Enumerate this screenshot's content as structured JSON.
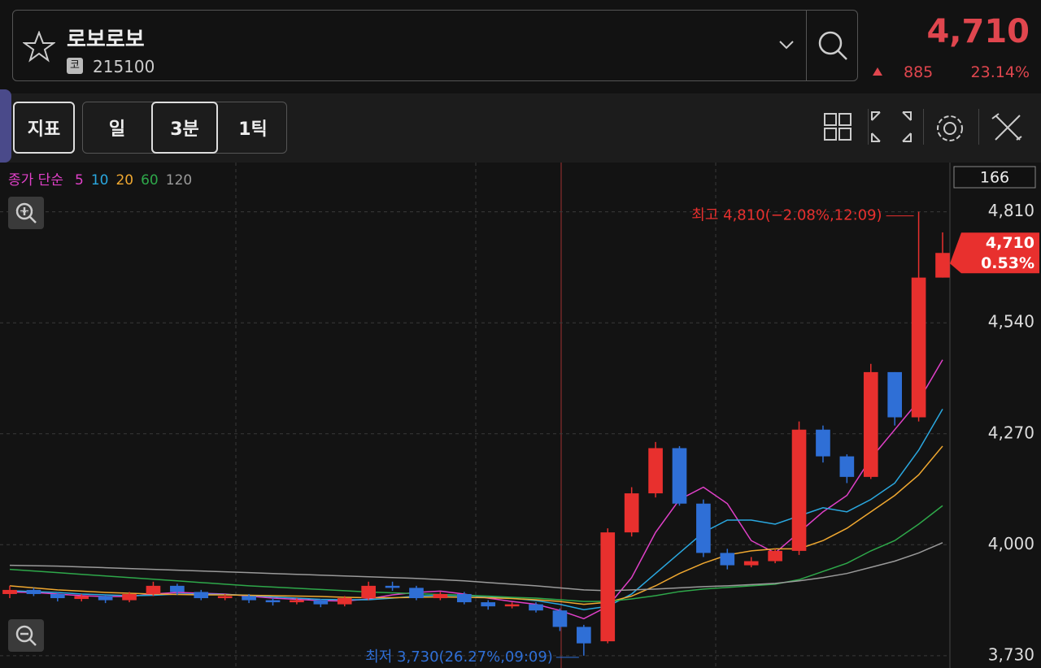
{
  "header": {
    "name": "로보로보",
    "market": "코",
    "code": "215100",
    "price": "4,710",
    "change": "885",
    "change_rate": "23.14%"
  },
  "toolbar": {
    "buttons": [
      "지표",
      "일",
      "3분",
      "1틱"
    ]
  },
  "chart_data": {
    "type": "candlestick",
    "legend_title": "종가 단순",
    "info_box": "166",
    "up_color": "#e8302e",
    "down_color": "#2f6fd6",
    "open": [
      3880,
      3890,
      3880,
      3868,
      3875,
      3865,
      3880,
      3900,
      3885,
      3870,
      3875,
      3865,
      3860,
      3865,
      3855,
      3870,
      3900,
      3895,
      3870,
      3880,
      3860,
      3850,
      3855,
      3840,
      3800,
      3765,
      4030,
      4125,
      4235,
      4100,
      3980,
      3950,
      3960,
      3985,
      4280,
      4215,
      4165,
      4420,
      4310,
      4650
    ],
    "high": [
      3900,
      3895,
      3885,
      3880,
      3878,
      3885,
      3910,
      3905,
      3890,
      3880,
      3880,
      3870,
      3870,
      3868,
      3875,
      3910,
      3910,
      3900,
      3885,
      3885,
      3865,
      3860,
      3860,
      3845,
      3805,
      4040,
      4140,
      4250,
      4240,
      4110,
      3990,
      3970,
      3990,
      4300,
      4290,
      4220,
      4440,
      4420,
      4810,
      4760
    ],
    "low": [
      3870,
      3875,
      3862,
      3862,
      3858,
      3860,
      3875,
      3878,
      3865,
      3865,
      3858,
      3852,
      3855,
      3848,
      3850,
      3865,
      3888,
      3865,
      3865,
      3855,
      3842,
      3845,
      3835,
      3790,
      3730,
      3760,
      4020,
      4115,
      4095,
      3970,
      3940,
      3945,
      3955,
      3975,
      4200,
      4150,
      4160,
      4290,
      4300,
      4650
    ],
    "close": [
      3890,
      3880,
      3870,
      3875,
      3865,
      3880,
      3900,
      3885,
      3870,
      3875,
      3865,
      3860,
      3865,
      3855,
      3870,
      3900,
      3895,
      3870,
      3880,
      3860,
      3850,
      3855,
      3840,
      3800,
      3760,
      4030,
      4125,
      4235,
      4100,
      3980,
      3950,
      3960,
      3985,
      4280,
      4215,
      4165,
      4420,
      4310,
      4650,
      4710
    ],
    "series": [
      {
        "name": "5",
        "color": "#e040c8",
        "values": [
          3885,
          3884,
          3880,
          3876,
          3874,
          3874,
          3880,
          3884,
          3882,
          3880,
          3875,
          3870,
          3867,
          3864,
          3863,
          3868,
          3878,
          3884,
          3887,
          3880,
          3870,
          3862,
          3855,
          3840,
          3820,
          3850,
          3920,
          4030,
          4110,
          4140,
          4100,
          4010,
          3980,
          4030,
          4080,
          4120,
          4210,
          4280,
          4350,
          4450
        ]
      },
      {
        "name": "10",
        "color": "#2aa8e0",
        "values": [
          3888,
          3886,
          3884,
          3880,
          3878,
          3876,
          3877,
          3880,
          3880,
          3879,
          3877,
          3873,
          3870,
          3867,
          3866,
          3866,
          3870,
          3875,
          3877,
          3876,
          3874,
          3870,
          3864,
          3855,
          3842,
          3850,
          3880,
          3930,
          3980,
          4030,
          4060,
          4060,
          4050,
          4070,
          4090,
          4080,
          4110,
          4150,
          4230,
          4330
        ]
      },
      {
        "name": "20",
        "color": "#f0a830",
        "values": [
          3900,
          3895,
          3890,
          3887,
          3884,
          3882,
          3880,
          3879,
          3878,
          3878,
          3877,
          3876,
          3875,
          3874,
          3872,
          3871,
          3871,
          3872,
          3873,
          3872,
          3871,
          3869,
          3866,
          3862,
          3855,
          3860,
          3875,
          3900,
          3930,
          3955,
          3975,
          3985,
          3990,
          3990,
          4010,
          4040,
          4080,
          4120,
          4170,
          4240
        ]
      },
      {
        "name": "60",
        "color": "#2ea84a",
        "values": [
          3940,
          3936,
          3932,
          3928,
          3924,
          3920,
          3916,
          3912,
          3908,
          3904,
          3900,
          3897,
          3894,
          3891,
          3888,
          3885,
          3883,
          3881,
          3879,
          3877,
          3875,
          3872,
          3870,
          3866,
          3862,
          3862,
          3868,
          3876,
          3886,
          3892,
          3896,
          3900,
          3904,
          3915,
          3935,
          3955,
          3985,
          4010,
          4050,
          4095
        ]
      },
      {
        "name": "120",
        "color": "#9a9a9a",
        "values": [
          3950,
          3949,
          3948,
          3946,
          3944,
          3942,
          3940,
          3938,
          3936,
          3934,
          3932,
          3930,
          3928,
          3926,
          3924,
          3922,
          3920,
          3918,
          3915,
          3912,
          3908,
          3904,
          3900,
          3895,
          3890,
          3888,
          3890,
          3892,
          3895,
          3898,
          3900,
          3903,
          3906,
          3912,
          3920,
          3930,
          3945,
          3960,
          3980,
          4005
        ]
      }
    ],
    "ylim": [
      3700,
      4930
    ],
    "yticks": [
      {
        "value": 4810,
        "label": "4,810"
      },
      {
        "value": 4540,
        "label": "4,540"
      },
      {
        "value": 4270,
        "label": "4,270"
      },
      {
        "value": 4000,
        "label": "4,000"
      },
      {
        "value": 3730,
        "label": "3,730"
      }
    ],
    "last_price": {
      "value": 4710,
      "label": "4,710"
    },
    "last_change": "0.53%",
    "high_note": "최고 4,810(−2.08%,12:09)",
    "low_note": "최저 3,730(26.27%,09:09)"
  }
}
